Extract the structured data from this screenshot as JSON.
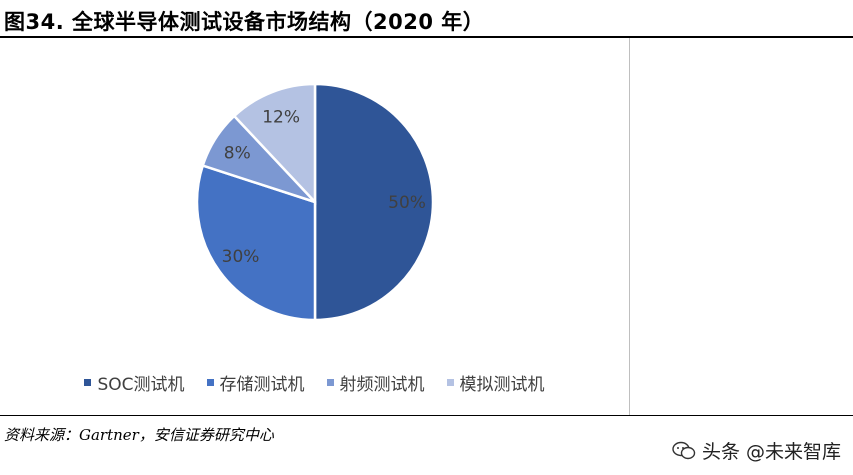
{
  "title": "图34. 全球半导体测试设备市场结构（2020 年）",
  "source": "资料来源：Gartner，安信证券研究中心",
  "watermark": {
    "text": "头条 @未来智库",
    "icon": "chat-bubble-icon"
  },
  "colors": {
    "slice_1": "#2f5597",
    "slice_2": "#4472c4",
    "slice_3": "#7c98d2",
    "slice_4": "#b4c2e3",
    "label": "#404040"
  },
  "chart_data": {
    "type": "pie",
    "title": "",
    "categories": [
      "SOC测试机",
      "存储测试机",
      "射频测试机",
      "模拟测试机"
    ],
    "values": [
      50,
      30,
      8,
      12
    ],
    "labels": [
      "50%",
      "30%",
      "8%",
      "12%"
    ],
    "unit": "%",
    "legend_position": "bottom"
  }
}
